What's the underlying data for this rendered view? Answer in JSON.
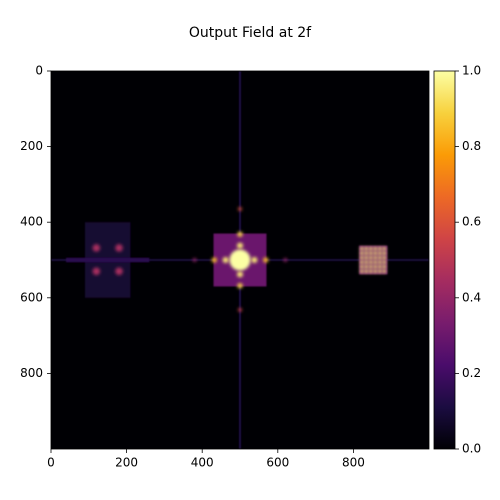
{
  "chart_data": {
    "type": "heatmap",
    "title": "Output Field at 2f",
    "xlim": [
      0,
      1000
    ],
    "ylim": [
      1000,
      0
    ],
    "xticks": [
      0,
      200,
      400,
      600,
      800
    ],
    "yticks": [
      0,
      200,
      400,
      600,
      800
    ],
    "clim": [
      0,
      1
    ],
    "cticks": [
      {
        "value": 0,
        "label": "0.0"
      },
      {
        "value": 0.2,
        "label": "0.2"
      },
      {
        "value": 0.4,
        "label": "0.4"
      },
      {
        "value": 0.6,
        "label": "0.6"
      },
      {
        "value": 0.8,
        "label": "0.8"
      },
      {
        "value": 1,
        "label": "1.0"
      }
    ],
    "colormap": "inferno",
    "colormap_colors": [
      "#000004",
      "#1b0c41",
      "#4a0c6b",
      "#781c6d",
      "#a52c60",
      "#cf4446",
      "#ed6925",
      "#fb9b06",
      "#f7d13d",
      "#fcffa4"
    ],
    "regions": [
      {
        "x0": 0,
        "x1": 1000,
        "y0": 497,
        "y1": 503,
        "value": 0.1
      },
      {
        "x0": 497,
        "x1": 503,
        "y0": 0,
        "y1": 1000,
        "value": 0.12
      },
      {
        "x0": 90,
        "x1": 210,
        "y0": 400,
        "y1": 600,
        "value": 0.08
      },
      {
        "x0": 40,
        "x1": 260,
        "y0": 494,
        "y1": 506,
        "value": 0.15
      },
      {
        "x0": 430,
        "x1": 570,
        "y0": 430,
        "y1": 570,
        "value": 0.3
      },
      {
        "x0": 815,
        "x1": 890,
        "y0": 462,
        "y1": 538,
        "value": 0.3
      }
    ],
    "points": [
      {
        "x": 500,
        "y": 500,
        "value": 1,
        "r": 28
      },
      {
        "x": 500,
        "y": 462,
        "value": 0.95,
        "r": 8
      },
      {
        "x": 500,
        "y": 538,
        "value": 0.95,
        "r": 8
      },
      {
        "x": 462,
        "y": 500,
        "value": 0.95,
        "r": 8
      },
      {
        "x": 538,
        "y": 500,
        "value": 0.95,
        "r": 8
      },
      {
        "x": 500,
        "y": 432,
        "value": 0.9,
        "r": 7
      },
      {
        "x": 500,
        "y": 568,
        "value": 0.9,
        "r": 7
      },
      {
        "x": 432,
        "y": 500,
        "value": 0.85,
        "r": 7
      },
      {
        "x": 568,
        "y": 500,
        "value": 0.85,
        "r": 7
      },
      {
        "x": 500,
        "y": 365,
        "value": 0.6,
        "r": 5
      },
      {
        "x": 500,
        "y": 632,
        "value": 0.55,
        "r": 5
      },
      {
        "x": 380,
        "y": 500,
        "value": 0.4,
        "r": 5
      },
      {
        "x": 620,
        "y": 500,
        "value": 0.4,
        "r": 5
      },
      {
        "x": 120,
        "y": 468,
        "value": 0.45,
        "r": 10
      },
      {
        "x": 180,
        "y": 468,
        "value": 0.45,
        "r": 10
      },
      {
        "x": 120,
        "y": 530,
        "value": 0.45,
        "r": 10
      },
      {
        "x": 180,
        "y": 530,
        "value": 0.45,
        "r": 10
      },
      {
        "x": 822,
        "y": 470,
        "value": 0.95,
        "r": 5
      },
      {
        "x": 834,
        "y": 470,
        "value": 0.95,
        "r": 5
      },
      {
        "x": 846,
        "y": 470,
        "value": 0.95,
        "r": 5
      },
      {
        "x": 858,
        "y": 470,
        "value": 0.95,
        "r": 5
      },
      {
        "x": 870,
        "y": 470,
        "value": 0.95,
        "r": 5
      },
      {
        "x": 882,
        "y": 470,
        "value": 0.95,
        "r": 5
      },
      {
        "x": 822,
        "y": 482,
        "value": 0.95,
        "r": 5
      },
      {
        "x": 834,
        "y": 482,
        "value": 0.95,
        "r": 5
      },
      {
        "x": 846,
        "y": 482,
        "value": 0.95,
        "r": 5
      },
      {
        "x": 858,
        "y": 482,
        "value": 0.95,
        "r": 5
      },
      {
        "x": 870,
        "y": 482,
        "value": 0.95,
        "r": 5
      },
      {
        "x": 882,
        "y": 482,
        "value": 0.95,
        "r": 5
      },
      {
        "x": 822,
        "y": 494,
        "value": 0.95,
        "r": 5
      },
      {
        "x": 834,
        "y": 494,
        "value": 0.95,
        "r": 5
      },
      {
        "x": 846,
        "y": 494,
        "value": 0.95,
        "r": 5
      },
      {
        "x": 858,
        "y": 494,
        "value": 0.95,
        "r": 5
      },
      {
        "x": 870,
        "y": 494,
        "value": 0.95,
        "r": 5
      },
      {
        "x": 882,
        "y": 494,
        "value": 0.95,
        "r": 5
      },
      {
        "x": 822,
        "y": 506,
        "value": 0.95,
        "r": 5
      },
      {
        "x": 834,
        "y": 506,
        "value": 0.95,
        "r": 5
      },
      {
        "x": 846,
        "y": 506,
        "value": 0.95,
        "r": 5
      },
      {
        "x": 858,
        "y": 506,
        "value": 0.95,
        "r": 5
      },
      {
        "x": 870,
        "y": 506,
        "value": 0.95,
        "r": 5
      },
      {
        "x": 882,
        "y": 506,
        "value": 0.95,
        "r": 5
      },
      {
        "x": 822,
        "y": 518,
        "value": 0.95,
        "r": 5
      },
      {
        "x": 834,
        "y": 518,
        "value": 0.95,
        "r": 5
      },
      {
        "x": 846,
        "y": 518,
        "value": 0.95,
        "r": 5
      },
      {
        "x": 858,
        "y": 518,
        "value": 0.95,
        "r": 5
      },
      {
        "x": 870,
        "y": 518,
        "value": 0.95,
        "r": 5
      },
      {
        "x": 882,
        "y": 518,
        "value": 0.95,
        "r": 5
      },
      {
        "x": 822,
        "y": 530,
        "value": 0.95,
        "r": 5
      },
      {
        "x": 834,
        "y": 530,
        "value": 0.95,
        "r": 5
      },
      {
        "x": 846,
        "y": 530,
        "value": 0.95,
        "r": 5
      },
      {
        "x": 858,
        "y": 530,
        "value": 0.95,
        "r": 5
      },
      {
        "x": 870,
        "y": 530,
        "value": 0.95,
        "r": 5
      },
      {
        "x": 882,
        "y": 530,
        "value": 0.95,
        "r": 5
      }
    ]
  }
}
